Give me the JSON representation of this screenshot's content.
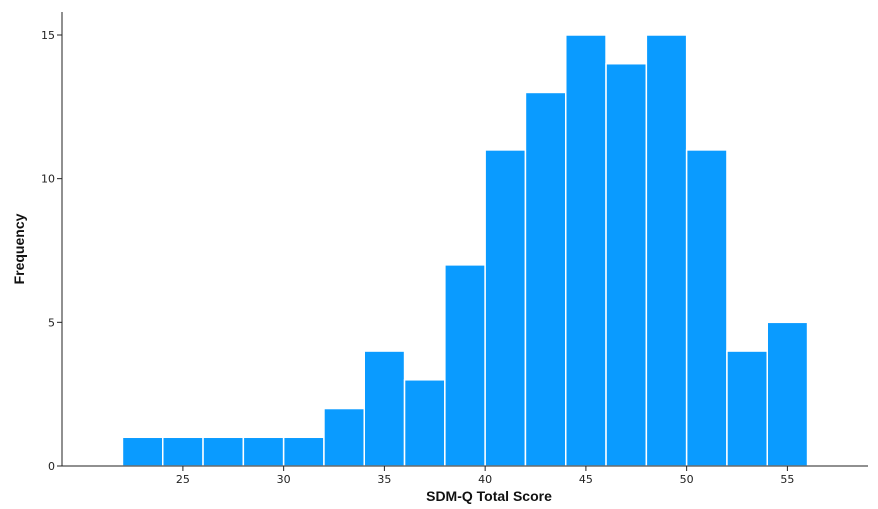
{
  "chart_data": {
    "type": "bar",
    "subtype": "histogram",
    "title": "",
    "xlabel": "SDM-Q Total Score",
    "ylabel": "Frequency",
    "bin_width": 2,
    "bins": [
      {
        "x0": 22,
        "x1": 24,
        "value": 1
      },
      {
        "x0": 24,
        "x1": 26,
        "value": 1
      },
      {
        "x0": 26,
        "x1": 28,
        "value": 1
      },
      {
        "x0": 28,
        "x1": 30,
        "value": 1
      },
      {
        "x0": 30,
        "x1": 32,
        "value": 1
      },
      {
        "x0": 32,
        "x1": 34,
        "value": 2
      },
      {
        "x0": 34,
        "x1": 36,
        "value": 4
      },
      {
        "x0": 36,
        "x1": 38,
        "value": 3
      },
      {
        "x0": 38,
        "x1": 40,
        "value": 7
      },
      {
        "x0": 40,
        "x1": 42,
        "value": 11
      },
      {
        "x0": 42,
        "x1": 44,
        "value": 13
      },
      {
        "x0": 44,
        "x1": 46,
        "value": 15
      },
      {
        "x0": 46,
        "x1": 48,
        "value": 14
      },
      {
        "x0": 48,
        "x1": 50,
        "value": 15
      },
      {
        "x0": 50,
        "x1": 52,
        "value": 11
      },
      {
        "x0": 52,
        "x1": 54,
        "value": 4
      },
      {
        "x0": 54,
        "x1": 56,
        "value": 5
      }
    ],
    "x_ticks": [
      "25",
      "30",
      "35",
      "40",
      "45",
      "50",
      "55"
    ],
    "y_ticks": [
      "0",
      "5",
      "10",
      "15"
    ],
    "xlim": [
      19,
      59
    ],
    "ylim": [
      0,
      15.8
    ],
    "grid": false,
    "legend": "none",
    "bar_color": "#0a9bff",
    "bar_edge_color": "#ffffff"
  }
}
